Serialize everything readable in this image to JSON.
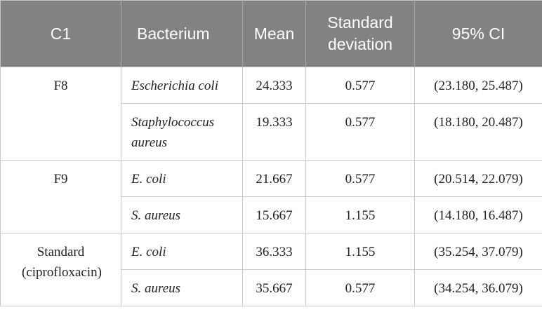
{
  "table": {
    "header": [
      "C1",
      "Bacterium",
      "Mean",
      "Standard deviation",
      "95% CI"
    ],
    "groups": [
      {
        "label": "F8",
        "rows": [
          [
            "Escherichia coli",
            "24.333",
            "0.577",
            "(23.180, 25.487)"
          ],
          [
            "Staphylococcus aureus",
            "19.333",
            "0.577",
            "(18.180, 20.487)"
          ]
        ]
      },
      {
        "label": "F9",
        "rows": [
          [
            "E. coli",
            "21.667",
            "0.577",
            "(20.514, 22.079)"
          ],
          [
            "S. aureus",
            "15.667",
            "1.155",
            "(14.180, 16.487)"
          ]
        ]
      },
      {
        "label": "Standard (ciprofloxacin)",
        "rows": [
          [
            "E. coli",
            "36.333",
            "1.155",
            "(35.254, 37.079)"
          ],
          [
            "S. aureus",
            "35.667",
            "0.577",
            "(34.254, 36.079)"
          ]
        ]
      }
    ]
  }
}
